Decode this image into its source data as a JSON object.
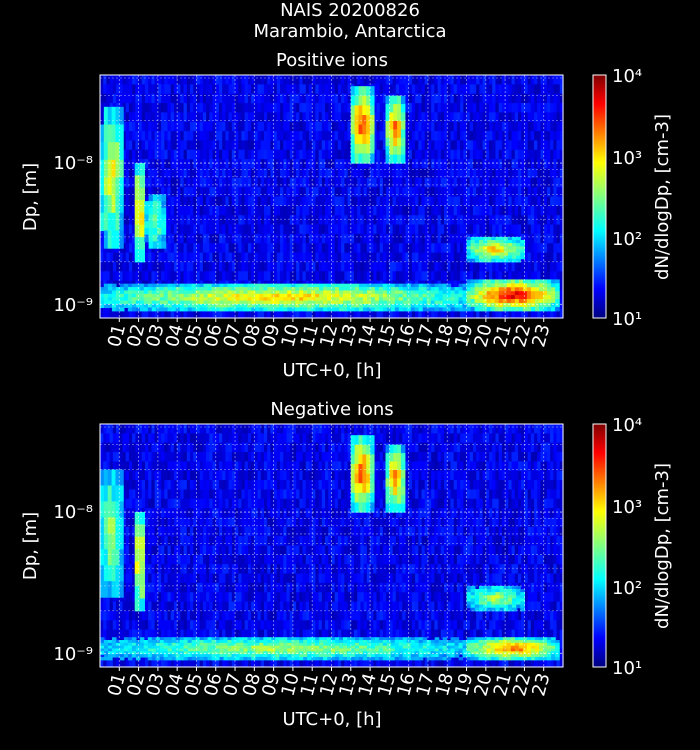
{
  "figure": {
    "title_line1": "NAIS 20200826",
    "title_line2": "Marambio, Antarctica",
    "background": "#000000",
    "text_color": "#ffffff"
  },
  "colorscale": [
    "#00007f",
    "#0000ff",
    "#0080ff",
    "#00ffff",
    "#80ff80",
    "#ffff00",
    "#ff8000",
    "#ff0000",
    "#7f0000"
  ],
  "chart_data": [
    {
      "type": "heatmap",
      "title": "Positive ions",
      "xlabel": "UTC+0, [h]",
      "ylabel": "Dp, [m]",
      "x_ticks": [
        "01",
        "02",
        "03",
        "04",
        "05",
        "06",
        "07",
        "08",
        "09",
        "10",
        "11",
        "12",
        "13",
        "14",
        "15",
        "16",
        "17",
        "18",
        "19",
        "20",
        "21",
        "22",
        "23"
      ],
      "xlim": [
        0,
        24
      ],
      "y_scale": "log",
      "ylim": [
        8e-10,
        4.2e-08
      ],
      "y_tick_labels": [
        "10⁻⁸",
        "10⁻⁹"
      ],
      "colorbar": {
        "label": "dN/dlogDp, [cm-3]",
        "scale": "log",
        "range": [
          10,
          10000
        ],
        "tick_labels": [
          "10⁴",
          "10³",
          "10²",
          "10¹"
        ]
      },
      "grid": true,
      "features": [
        {
          "t0": 0.0,
          "t1": 1.2,
          "d0": 2.5e-09,
          "d1": 2.5e-08,
          "log_level": 3.0
        },
        {
          "t0": 1.8,
          "t1": 2.3,
          "d0": 2e-09,
          "d1": 1e-08,
          "log_level": 3.4
        },
        {
          "t0": 2.3,
          "t1": 3.4,
          "d0": 2.5e-09,
          "d1": 6e-09,
          "log_level": 2.6
        },
        {
          "t0": 0.0,
          "t1": 19.0,
          "d0": 9e-10,
          "d1": 1.4e-09,
          "log_level": 3.1
        },
        {
          "t0": 13.0,
          "t1": 14.2,
          "d0": 1e-08,
          "d1": 3.5e-08,
          "log_level": 3.6
        },
        {
          "t0": 14.8,
          "t1": 15.8,
          "d0": 1e-08,
          "d1": 3e-08,
          "log_level": 3.4
        },
        {
          "t0": 19.0,
          "t1": 23.8,
          "d0": 9e-10,
          "d1": 1.5e-09,
          "log_level": 3.8
        },
        {
          "t0": 19.0,
          "t1": 22.0,
          "d0": 2e-09,
          "d1": 3e-09,
          "log_level": 3.1
        }
      ]
    },
    {
      "type": "heatmap",
      "title": "Negative ions",
      "xlabel": "UTC+0, [h]",
      "ylabel": "Dp, [m]",
      "x_ticks": [
        "01",
        "02",
        "03",
        "04",
        "05",
        "06",
        "07",
        "08",
        "09",
        "10",
        "11",
        "12",
        "13",
        "14",
        "15",
        "16",
        "17",
        "18",
        "19",
        "20",
        "21",
        "22",
        "23"
      ],
      "xlim": [
        0,
        24
      ],
      "y_scale": "log",
      "ylim": [
        8e-10,
        4.2e-08
      ],
      "y_tick_labels": [
        "10⁻⁸",
        "10⁻⁹"
      ],
      "colorbar": {
        "label": "dN/dlogDp, [cm-3]",
        "scale": "log",
        "range": [
          10,
          10000
        ],
        "tick_labels": [
          "10⁴",
          "10³",
          "10²",
          "10¹"
        ]
      },
      "grid": true,
      "features": [
        {
          "t0": 0.0,
          "t1": 1.2,
          "d0": 2.5e-09,
          "d1": 2e-08,
          "log_level": 2.7
        },
        {
          "t0": 1.8,
          "t1": 2.3,
          "d0": 2e-09,
          "d1": 1e-08,
          "log_level": 3.3
        },
        {
          "t0": 0.0,
          "t1": 19.0,
          "d0": 9e-10,
          "d1": 1.3e-09,
          "log_level": 2.7
        },
        {
          "t0": 13.0,
          "t1": 14.2,
          "d0": 1e-08,
          "d1": 3.5e-08,
          "log_level": 3.6
        },
        {
          "t0": 14.8,
          "t1": 15.8,
          "d0": 1e-08,
          "d1": 3e-08,
          "log_level": 3.3
        },
        {
          "t0": 19.0,
          "t1": 23.8,
          "d0": 9e-10,
          "d1": 1.3e-09,
          "log_level": 3.4
        },
        {
          "t0": 19.0,
          "t1": 22.0,
          "d0": 2e-09,
          "d1": 3e-09,
          "log_level": 2.7
        }
      ]
    }
  ]
}
